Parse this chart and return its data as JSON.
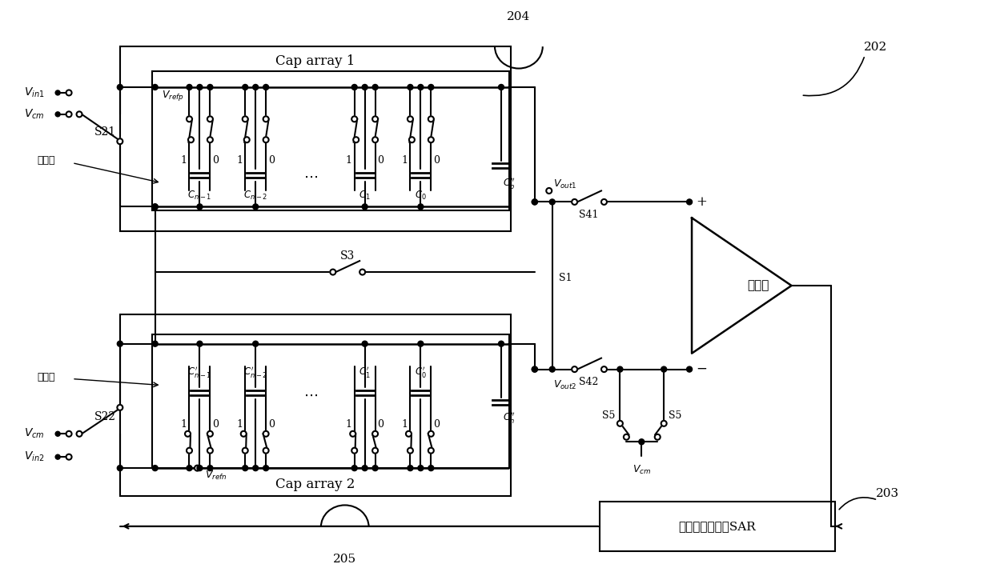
{
  "bg_color": "#ffffff",
  "fig_width": 12.39,
  "fig_height": 7.15,
  "label_202": "202",
  "label_203": "203",
  "label_204": "204",
  "label_205": "205",
  "cap_array_1": "Cap array 1",
  "cap_array_2": "Cap array 2",
  "comparator_label": "比较器",
  "sar_label": "逐次递近寄存器SAR",
  "xia_ji_ban": "下极板",
  "vrefp": "$V_{refp}$",
  "vrefn": "$V_{refn}$",
  "vcm": "$V_{cm}$",
  "vin1": "$V_{in1}$",
  "vin2": "$V_{in2}$",
  "vout1": "$V_{out1}$",
  "vout2": "$V_{out2}$"
}
